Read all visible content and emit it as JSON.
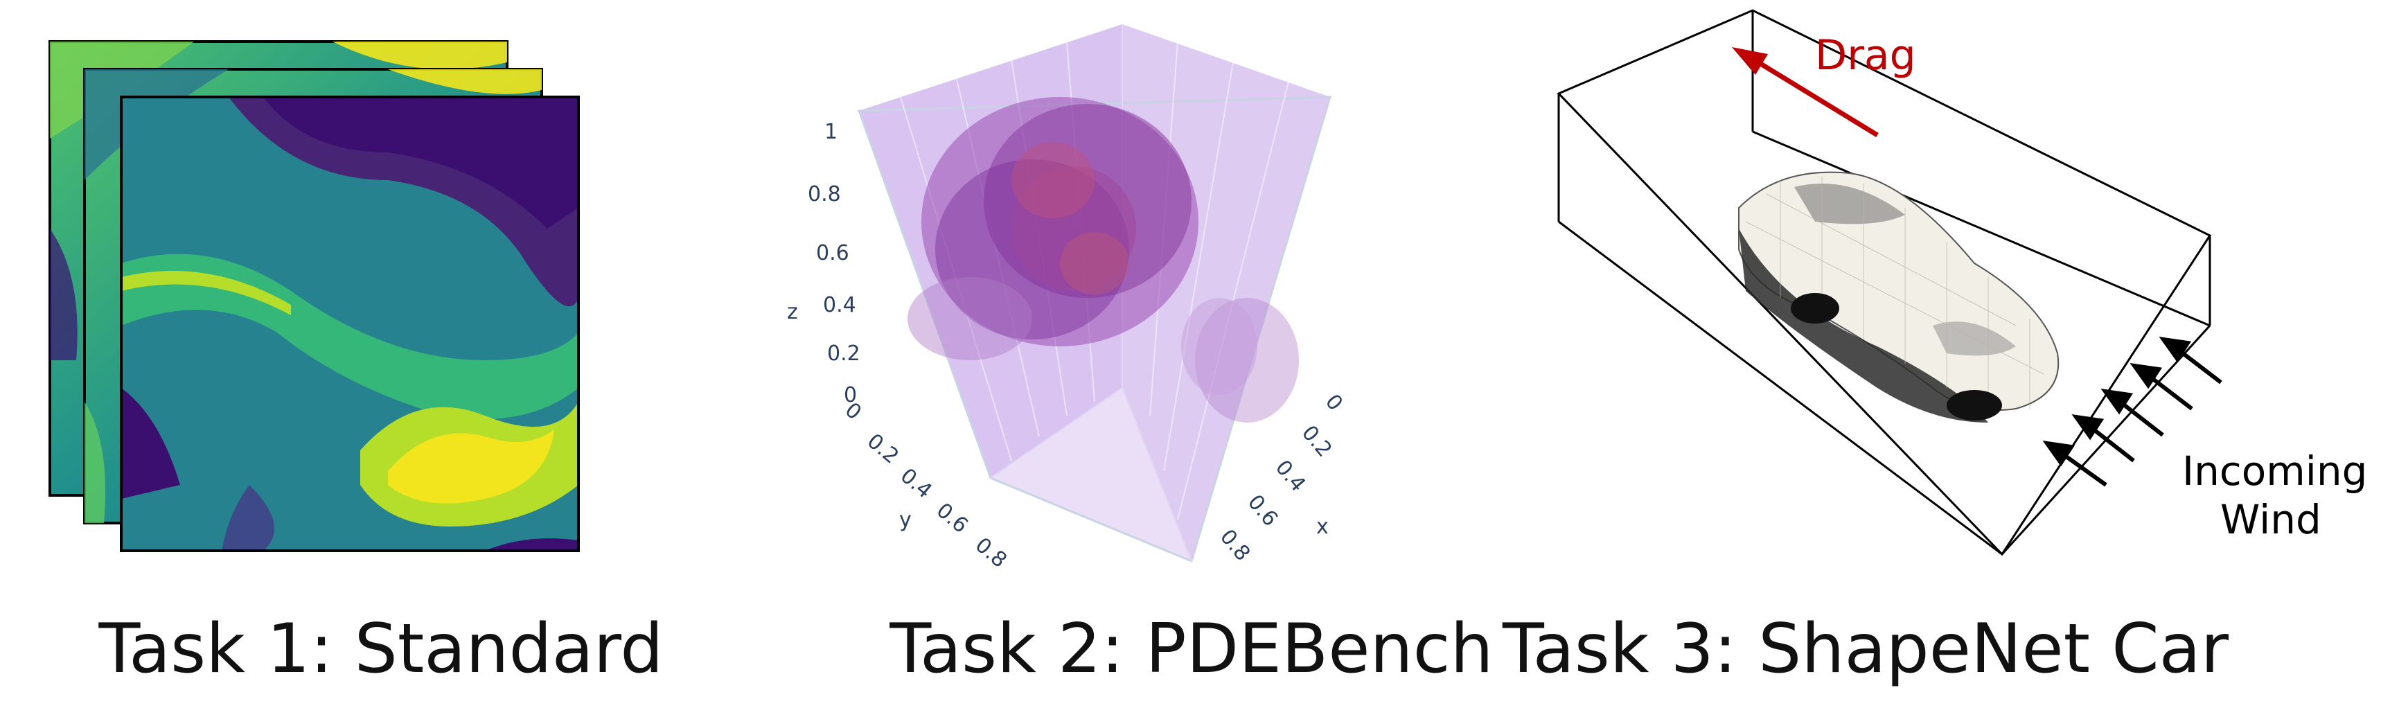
{
  "panels": [
    {
      "caption": "Task 1: Standard"
    },
    {
      "caption": "Task 2: PDEBench",
      "axes": {
        "z_label": "z",
        "y_label": "y",
        "x_label": "x",
        "z_ticks": [
          "0",
          "0.2",
          "0.4",
          "0.6",
          "0.8",
          "1"
        ],
        "y_ticks": [
          "0",
          "0.2",
          "0.4",
          "0.6",
          "0.8"
        ],
        "x_ticks": [
          "0",
          "0.2",
          "0.4",
          "0.6",
          "0.8"
        ]
      }
    },
    {
      "caption": "Task 3: ShapeNet Car",
      "drag_label": "Drag",
      "wind_label_line1": "Incoming",
      "wind_label_line2": "Wind"
    }
  ],
  "colors": {
    "drag_arrow": "#c00000",
    "volume_fill": "#d9c4f0",
    "blob": "#8a3fa0",
    "viridis_dark": "#3b0f70",
    "viridis_yellow": "#f2e51d"
  }
}
